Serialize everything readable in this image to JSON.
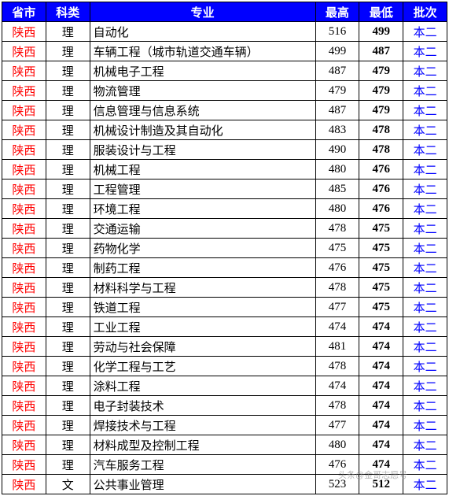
{
  "headers": {
    "province": "省市",
    "subject": "科类",
    "major": "专业",
    "high": "最高",
    "low": "最低",
    "batch": "批次"
  },
  "rows": [
    {
      "province": "陕西",
      "subject": "理",
      "major": "自动化",
      "high": "516",
      "low": "499",
      "batch": "本二"
    },
    {
      "province": "陕西",
      "subject": "理",
      "major": "车辆工程（城市轨道交通车辆）",
      "high": "499",
      "low": "487",
      "batch": "本二"
    },
    {
      "province": "陕西",
      "subject": "理",
      "major": "机械电子工程",
      "high": "487",
      "low": "479",
      "batch": "本二"
    },
    {
      "province": "陕西",
      "subject": "理",
      "major": "物流管理",
      "high": "479",
      "low": "479",
      "batch": "本二"
    },
    {
      "province": "陕西",
      "subject": "理",
      "major": "信息管理与信息系统",
      "high": "487",
      "low": "479",
      "batch": "本二"
    },
    {
      "province": "陕西",
      "subject": "理",
      "major": "机械设计制造及其自动化",
      "high": "483",
      "low": "478",
      "batch": "本二"
    },
    {
      "province": "陕西",
      "subject": "理",
      "major": "服装设计与工程",
      "high": "490",
      "low": "478",
      "batch": "本二"
    },
    {
      "province": "陕西",
      "subject": "理",
      "major": "机械工程",
      "high": "480",
      "low": "476",
      "batch": "本二"
    },
    {
      "province": "陕西",
      "subject": "理",
      "major": "工程管理",
      "high": "485",
      "low": "476",
      "batch": "本二"
    },
    {
      "province": "陕西",
      "subject": "理",
      "major": "环境工程",
      "high": "480",
      "low": "476",
      "batch": "本二"
    },
    {
      "province": "陕西",
      "subject": "理",
      "major": "交通运输",
      "high": "478",
      "low": "475",
      "batch": "本二"
    },
    {
      "province": "陕西",
      "subject": "理",
      "major": "药物化学",
      "high": "475",
      "low": "475",
      "batch": "本二"
    },
    {
      "province": "陕西",
      "subject": "理",
      "major": "制药工程",
      "high": "476",
      "low": "475",
      "batch": "本二"
    },
    {
      "province": "陕西",
      "subject": "理",
      "major": "材料科学与工程",
      "high": "478",
      "low": "475",
      "batch": "本二"
    },
    {
      "province": "陕西",
      "subject": "理",
      "major": "铁道工程",
      "high": "477",
      "low": "475",
      "batch": "本二"
    },
    {
      "province": "陕西",
      "subject": "理",
      "major": "工业工程",
      "high": "474",
      "low": "474",
      "batch": "本二"
    },
    {
      "province": "陕西",
      "subject": "理",
      "major": "劳动与社会保障",
      "high": "481",
      "low": "474",
      "batch": "本二"
    },
    {
      "province": "陕西",
      "subject": "理",
      "major": "化学工程与工艺",
      "high": "478",
      "low": "474",
      "batch": "本二"
    },
    {
      "province": "陕西",
      "subject": "理",
      "major": "涂料工程",
      "high": "474",
      "low": "474",
      "batch": "本二"
    },
    {
      "province": "陕西",
      "subject": "理",
      "major": "电子封装技术",
      "high": "478",
      "low": "474",
      "batch": "本二"
    },
    {
      "province": "陕西",
      "subject": "理",
      "major": "焊接技术与工程",
      "high": "477",
      "low": "474",
      "batch": "本二"
    },
    {
      "province": "陕西",
      "subject": "理",
      "major": "材料成型及控制工程",
      "high": "480",
      "low": "474",
      "batch": "本二"
    },
    {
      "province": "陕西",
      "subject": "理",
      "major": "汽车服务工程",
      "high": "476",
      "low": "474",
      "batch": "本二"
    },
    {
      "province": "陕西",
      "subject": "文",
      "major": "公共事业管理",
      "high": "523",
      "low": "512",
      "batch": "本二"
    }
  ],
  "watermark": "头条@金哥志愿号"
}
